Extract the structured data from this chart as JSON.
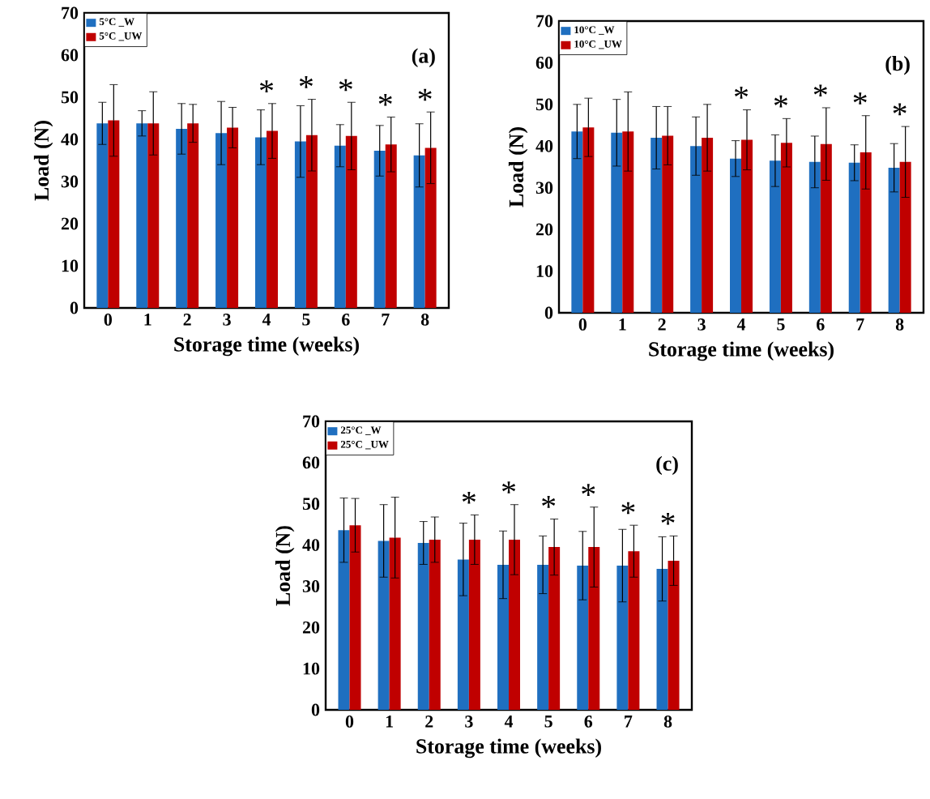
{
  "chart_data": [
    {
      "type": "bar",
      "xlabel": "Storage time (weeks)",
      "ylabel": "Load (N)",
      "categories": [
        "0",
        "1",
        "2",
        "3",
        "4",
        "5",
        "6",
        "7",
        "8"
      ],
      "ylim": [
        0,
        70
      ],
      "yticks": [
        0,
        10,
        20,
        30,
        40,
        50,
        60,
        70
      ],
      "legend": "top left",
      "series": [
        {
          "name": "5°C _W",
          "color": "#1f6fc0",
          "values": [
            43.8,
            43.8,
            42.5,
            41.5,
            40.5,
            39.5,
            38.5,
            37.3,
            36.2
          ],
          "errors": [
            5,
            3,
            6,
            7.5,
            6.5,
            8.5,
            5,
            6,
            7.5
          ]
        },
        {
          "name": "5°C _UW",
          "color": "#c00000",
          "values": [
            44.5,
            43.8,
            43.8,
            42.8,
            42,
            41,
            40.8,
            38.8,
            38
          ],
          "errors": [
            8.5,
            7.5,
            4.5,
            4.8,
            6.5,
            8.5,
            8,
            6.5,
            8.5
          ]
        }
      ],
      "annotations": [
        "(a)",
        {
          "text": "*",
          "x": "4",
          "y": 42
        },
        {
          "text": "*",
          "x": "5",
          "y": 41
        },
        {
          "text": "*",
          "x": "6",
          "y": 40.8
        },
        {
          "text": "*",
          "x": "7",
          "y": 38.8
        },
        {
          "text": "*",
          "x": "8",
          "y": 38
        }
      ]
    },
    {
      "type": "bar",
      "xlabel": "Storage time (weeks)",
      "ylabel": "Load (N)",
      "categories": [
        "0",
        "1",
        "2",
        "3",
        "4",
        "5",
        "6",
        "7",
        "8"
      ],
      "ylim": [
        0,
        70
      ],
      "yticks": [
        0,
        10,
        20,
        30,
        40,
        50,
        60,
        70
      ],
      "legend": "top left",
      "series": [
        {
          "name": "10°C _W",
          "color": "#1f6fc0",
          "values": [
            43.5,
            43.2,
            42,
            40,
            37,
            36.5,
            36.2,
            36,
            34.8
          ],
          "errors": [
            6.5,
            8,
            7.5,
            7,
            4.3,
            6.2,
            6.2,
            4.3,
            5.8
          ]
        },
        {
          "name": "10°C _UW",
          "color": "#c00000",
          "values": [
            44.5,
            43.5,
            42.5,
            42,
            41.5,
            40.8,
            40.5,
            38.5,
            36.2
          ],
          "errors": [
            7,
            9.5,
            7,
            8,
            7.2,
            5.8,
            8.7,
            8.8,
            8.5
          ]
        }
      ],
      "annotations": [
        "(b)",
        {
          "text": "*",
          "x": "4",
          "y": 41.5
        },
        {
          "text": "*",
          "x": "5",
          "y": 40.8
        },
        {
          "text": "*",
          "x": "6",
          "y": 40.5
        },
        {
          "text": "*",
          "x": "7",
          "y": 38.5
        },
        {
          "text": "*",
          "x": "8",
          "y": 36.2
        }
      ]
    },
    {
      "type": "bar",
      "xlabel": "Storage time (weeks)",
      "ylabel": "Load (N)",
      "categories": [
        "0",
        "1",
        "2",
        "3",
        "4",
        "5",
        "6",
        "7",
        "8"
      ],
      "ylim": [
        0,
        70
      ],
      "yticks": [
        0,
        10,
        20,
        30,
        40,
        50,
        60,
        70
      ],
      "legend": "top left",
      "series": [
        {
          "name": "25°C _W",
          "color": "#1f6fc0",
          "values": [
            43.6,
            41,
            40.5,
            36.5,
            35.2,
            35.2,
            35,
            35,
            34.2
          ],
          "errors": [
            7.8,
            8.8,
            5.2,
            8.8,
            8.2,
            7,
            8.3,
            8.8,
            7.8
          ]
        },
        {
          "name": "25°C _UW",
          "color": "#c00000",
          "values": [
            44.8,
            41.8,
            41.3,
            41.3,
            41.3,
            39.5,
            39.5,
            38.5,
            36.2
          ],
          "errors": [
            6.5,
            9.8,
            5.5,
            6,
            8.5,
            6.8,
            9.7,
            6.3,
            6
          ]
        }
      ],
      "annotations": [
        "(c)",
        {
          "text": "*",
          "x": "3",
          "y": 41.3
        },
        {
          "text": "*",
          "x": "4",
          "y": 41.3
        },
        {
          "text": "*",
          "x": "5",
          "y": 39.5
        },
        {
          "text": "*",
          "x": "6",
          "y": 39.5
        },
        {
          "text": "*",
          "x": "7",
          "y": 38.5
        },
        {
          "text": "*",
          "x": "8",
          "y": 36.2
        }
      ]
    }
  ]
}
